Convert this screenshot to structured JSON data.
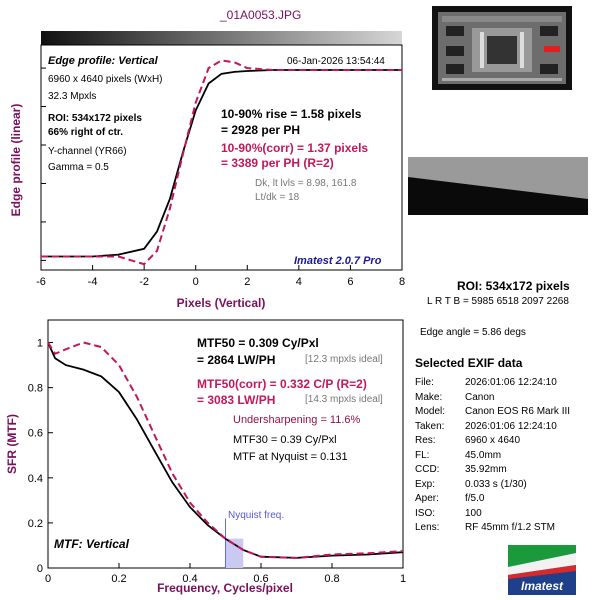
{
  "file_title": "_01A0053.JPG",
  "edge_panel": {
    "profile_label": "Edge profile: Vertical",
    "timestamp": "06-Jan-2026 13:54:44",
    "dims": "6960 x 4640 pixels (WxH)",
    "mpxls": "32.3 Mpxls",
    "roi_line1": "ROI: 534x172 pixels",
    "roi_line2": "66% right of ctr.",
    "channel": "Y-channel  (YR66)",
    "gamma": "Gamma = 0.5",
    "rise_line1": "10-90% rise = 1.58 pixels",
    "rise_line2": "= 2928 per PH",
    "corr_line1": "10-90%(corr) = 1.37 pixels",
    "corr_line2": "= 3389 per PH  (R=2)",
    "dk_line1": "Dk, lt lvls = 8.98, 161.8",
    "dk_line2": "Lt/dk = 18",
    "version": "Imatest 2.0.7 Pro",
    "ylabel": "Edge profile (linear)",
    "xlabel": "Pixels (Vertical)",
    "xticks": [
      "-6",
      "-4",
      "-2",
      "0",
      "2",
      "4",
      "6",
      "8"
    ]
  },
  "roi_info": {
    "title": "ROI: 534x172 pixels",
    "lrtb": "L R  T B = 5985 6518  2097 2268",
    "edge_angle": "Edge angle = 5.86 degs"
  },
  "mtf_panel": {
    "mtf50_line1": "MTF50 = 0.309 Cy/Pxl",
    "mtf50_line2": "= 2864 LW/PH",
    "mtf50_ideal": "[12.3 mpxls ideal]",
    "corr_line1": "MTF50(corr) = 0.332 C/P  (R=2)",
    "corr_line2": "= 3083 LW/PH",
    "corr_ideal": "[14.3 mpxls ideal]",
    "undersharp": "Undersharpening = 11.6%",
    "mtf30": "MTF30 = 0.39 Cy/Pxl",
    "nyquist_mtf": "MTF at Nyquist = 0.131",
    "nyquist_label": "Nyquist freq.",
    "mode_label": "MTF: Vertical",
    "ylabel": "SFR (MTF)",
    "xlabel": "Frequency, Cycles/pixel",
    "xticks": [
      "0",
      "0.2",
      "0.4",
      "0.6",
      "0.8",
      "1"
    ],
    "yticks": [
      "0",
      "0.2",
      "0.4",
      "0.6",
      "0.8",
      "1"
    ]
  },
  "exif": {
    "heading": "Selected EXIF data",
    "rows": [
      {
        "k": "File:",
        "v": "2026:01:06 12:24:10"
      },
      {
        "k": "Make:",
        "v": "Canon"
      },
      {
        "k": "Model:",
        "v": "Canon EOS R6 Mark III"
      },
      {
        "k": "Taken:",
        "v": "2026:01:06 12:24:10"
      },
      {
        "k": "Res:",
        "v": "6960 x 4640"
      },
      {
        "k": "FL:",
        "v": "45.0mm"
      },
      {
        "k": "CCD:",
        "v": "35.92mm"
      },
      {
        "k": "Exp:",
        "v": "0.033 s  (1/30)"
      },
      {
        "k": "Aper:",
        "v": "f/5.0"
      },
      {
        "k": "ISO:",
        "v": "100"
      },
      {
        "k": "Lens:",
        "v": "RF 45mm f/1.2 STM"
      }
    ]
  },
  "logo_text": "Imatest",
  "colors": {
    "measured": "#000000",
    "corrected": "#c2185b",
    "label_purple": "#7a0f5c",
    "version_blue": "#1a1a9a",
    "nyquist_fill": "#c9c9f2"
  },
  "chart_data": [
    {
      "type": "line",
      "title": "Edge profile: Vertical",
      "xlabel": "Pixels (Vertical)",
      "ylabel": "Edge profile (linear)",
      "xlim": [
        -6,
        8
      ],
      "series": [
        {
          "x": [
            -6,
            -4,
            -3,
            -2,
            -1.5,
            -1,
            -0.5,
            0,
            0.5,
            1,
            1.5,
            2,
            3,
            4,
            6,
            8
          ],
          "y": [
            0.02,
            0.02,
            0.03,
            0.06,
            0.15,
            0.32,
            0.56,
            0.78,
            0.92,
            0.97,
            0.98,
            0.985,
            0.99,
            0.99,
            0.99,
            0.99
          ]
        },
        {
          "x": [
            -6,
            -4,
            -3,
            -2,
            -1.5,
            -1,
            -0.5,
            0,
            0.5,
            1,
            1.5,
            2,
            3,
            4,
            6,
            8
          ],
          "y": [
            0.02,
            0.02,
            0.02,
            -0.02,
            0.05,
            0.27,
            0.55,
            0.82,
            1.0,
            1.04,
            1.03,
            1.0,
            0.99,
            0.99,
            0.99,
            0.99
          ]
        }
      ]
    },
    {
      "type": "line",
      "title": "MTF: Vertical",
      "xlabel": "Frequency, Cycles/pixel",
      "ylabel": "SFR (MTF)",
      "xlim": [
        0,
        1
      ],
      "ylim": [
        0,
        1.1
      ],
      "series": [
        {
          "x": [
            0,
            0.02,
            0.05,
            0.1,
            0.15,
            0.2,
            0.25,
            0.3,
            0.35,
            0.4,
            0.45,
            0.5,
            0.55,
            0.6,
            0.7,
            0.8,
            0.9,
            1.0
          ],
          "y": [
            1.0,
            0.93,
            0.9,
            0.88,
            0.85,
            0.78,
            0.66,
            0.52,
            0.38,
            0.27,
            0.19,
            0.13,
            0.08,
            0.05,
            0.045,
            0.055,
            0.06,
            0.07
          ]
        },
        {
          "x": [
            0,
            0.02,
            0.05,
            0.1,
            0.15,
            0.2,
            0.25,
            0.3,
            0.35,
            0.4,
            0.45,
            0.5,
            0.55,
            0.6,
            0.7,
            0.8,
            0.9,
            1.0
          ],
          "y": [
            1.0,
            0.95,
            0.97,
            1.0,
            0.98,
            0.9,
            0.76,
            0.59,
            0.42,
            0.29,
            0.2,
            0.13,
            0.08,
            0.05,
            0.045,
            0.06,
            0.065,
            0.075
          ]
        }
      ]
    }
  ]
}
